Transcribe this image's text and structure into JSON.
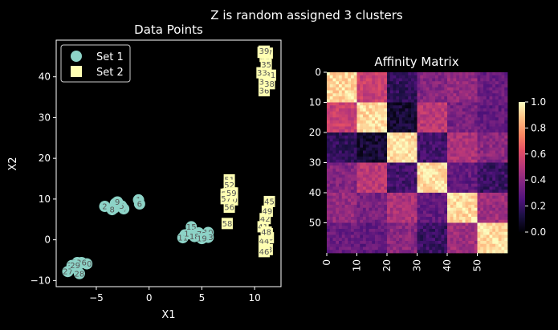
{
  "suptitle": "Z is random assigned 3 clusters",
  "colors": {
    "background": "#000000",
    "foreground": "#ffffff",
    "set1": "#8dd3c7",
    "set2": "#ffffb3",
    "label_text": "#555555"
  },
  "chart_data": [
    {
      "type": "scatter",
      "title": "Data Points",
      "xlabel": "X1",
      "ylabel": "X2",
      "xlim": [
        -8.8,
        12.5
      ],
      "ylim": [
        -11.5,
        49
      ],
      "xticks": [
        -5,
        0,
        5,
        10
      ],
      "yticks": [
        -10,
        0,
        10,
        20,
        30,
        40
      ],
      "xtick_labels": [
        "−5",
        "0",
        "5",
        "10"
      ],
      "ytick_labels": [
        "−10",
        "0",
        "10",
        "20",
        "30",
        "40"
      ],
      "legend_position": "top-left",
      "series": [
        {
          "name": "Set 1",
          "marker": "circle",
          "points": [
            {
              "label": "0",
              "x": 3.4,
              "y": 1.2
            },
            {
              "label": "1",
              "x": -1.0,
              "y": 9.8
            },
            {
              "label": "2",
              "x": -4.2,
              "y": 8.2
            },
            {
              "label": "3",
              "x": -3.3,
              "y": 7.8
            },
            {
              "label": "4",
              "x": -2.4,
              "y": 7.6
            },
            {
              "label": "5",
              "x": -2.6,
              "y": 8.3
            },
            {
              "label": "6",
              "x": -0.9,
              "y": 8.8
            },
            {
              "label": "7",
              "x": -3.2,
              "y": 8.9
            },
            {
              "label": "8",
              "x": -3.5,
              "y": 7.4
            },
            {
              "label": "9",
              "x": -3.0,
              "y": 9.3
            },
            {
              "label": "10",
              "x": 5.6,
              "y": 1.8
            },
            {
              "label": "11",
              "x": 3.2,
              "y": 0.5
            },
            {
              "label": "12",
              "x": 4.7,
              "y": 1.7
            },
            {
              "label": "13",
              "x": 5.6,
              "y": 0.6
            },
            {
              "label": "14",
              "x": 3.8,
              "y": 1.5
            },
            {
              "label": "15",
              "x": 4.0,
              "y": 3.2
            },
            {
              "label": "16",
              "x": 4.9,
              "y": 1.2
            },
            {
              "label": "17",
              "x": 4.5,
              "y": 1.4
            },
            {
              "label": "18",
              "x": 4.3,
              "y": 0.8
            },
            {
              "label": "19",
              "x": 5.0,
              "y": 0.3
            },
            {
              "label": "20",
              "x": -5.9,
              "y": -5.9
            },
            {
              "label": "21",
              "x": -7.3,
              "y": -6.3
            },
            {
              "label": "22",
              "x": -6.8,
              "y": -5.6
            },
            {
              "label": "23",
              "x": -6.6,
              "y": -5.9
            },
            {
              "label": "24",
              "x": -6.9,
              "y": -7.0
            },
            {
              "label": "25",
              "x": -7.2,
              "y": -6.9
            },
            {
              "label": "26",
              "x": -6.4,
              "y": -5.6
            },
            {
              "label": "27",
              "x": -7.7,
              "y": -7.8
            },
            {
              "label": "28",
              "x": -6.6,
              "y": -8.3
            },
            {
              "label": "29",
              "x": -7.0,
              "y": -6.3
            }
          ]
        },
        {
          "name": "Set 2",
          "marker": "square",
          "points": [
            {
              "label": "30",
              "x": 11.0,
              "y": 45.0
            },
            {
              "label": "31",
              "x": 11.5,
              "y": 40.4
            },
            {
              "label": "32",
              "x": 10.8,
              "y": 46.0
            },
            {
              "label": "33",
              "x": 10.7,
              "y": 41.0
            },
            {
              "label": "34",
              "x": 10.9,
              "y": 38.8
            },
            {
              "label": "35",
              "x": 11.1,
              "y": 43.0
            },
            {
              "label": "36",
              "x": 10.9,
              "y": 36.6
            },
            {
              "label": "37",
              "x": 11.2,
              "y": 45.8
            },
            {
              "label": "38",
              "x": 11.4,
              "y": 38.3
            },
            {
              "label": "39",
              "x": 10.9,
              "y": 46.3
            },
            {
              "label": "40",
              "x": 11.3,
              "y": 0.5
            },
            {
              "label": "41",
              "x": 10.8,
              "y": 3.2
            },
            {
              "label": "42",
              "x": 11.0,
              "y": 5.2
            },
            {
              "label": "43",
              "x": 11.2,
              "y": -2.4
            },
            {
              "label": "44",
              "x": 10.9,
              "y": -0.3
            },
            {
              "label": "45",
              "x": 11.4,
              "y": 9.4
            },
            {
              "label": "46",
              "x": 10.9,
              "y": -2.9
            },
            {
              "label": "47",
              "x": 11.2,
              "y": 1.5
            },
            {
              "label": "48",
              "x": 11.1,
              "y": 1.9
            },
            {
              "label": "49",
              "x": 11.2,
              "y": 7.0
            },
            {
              "label": "50",
              "x": 7.9,
              "y": 9.8
            },
            {
              "label": "51",
              "x": 7.6,
              "y": 14.7
            },
            {
              "label": "52",
              "x": 7.6,
              "y": 13.4
            },
            {
              "label": "53",
              "x": 7.5,
              "y": 11.3
            },
            {
              "label": "54",
              "x": 7.9,
              "y": 11.5
            },
            {
              "label": "55",
              "x": 7.3,
              "y": 11.2
            },
            {
              "label": "56",
              "x": 7.6,
              "y": 8.0
            },
            {
              "label": "57",
              "x": 7.3,
              "y": 10.1
            },
            {
              "label": "58",
              "x": 7.4,
              "y": 4.0
            },
            {
              "label": "59",
              "x": 7.8,
              "y": 11.5
            }
          ]
        }
      ]
    },
    {
      "type": "heatmap",
      "title": "Affinity Matrix",
      "rows": 60,
      "cols": 60,
      "xticks": [
        0,
        10,
        20,
        30,
        40,
        50
      ],
      "yticks": [
        0,
        10,
        20,
        30,
        40,
        50
      ],
      "colorbar_range": [
        0.0,
        1.0
      ],
      "colorbar_ticks": [
        0.0,
        0.2,
        0.4,
        0.6,
        0.8,
        1.0
      ],
      "colorbar_tick_labels": [
        "0.0",
        "0.2",
        "0.4",
        "0.6",
        "0.8",
        "1.0"
      ],
      "colormap": "magma",
      "block_size": 10,
      "block_affinity": [
        [
          0.92,
          0.55,
          0.18,
          0.38,
          0.42,
          0.32
        ],
        [
          0.55,
          0.92,
          0.1,
          0.52,
          0.35,
          0.3
        ],
        [
          0.18,
          0.1,
          0.93,
          0.22,
          0.48,
          0.4
        ],
        [
          0.38,
          0.52,
          0.22,
          0.93,
          0.3,
          0.2
        ],
        [
          0.42,
          0.35,
          0.48,
          0.3,
          0.92,
          0.45
        ],
        [
          0.32,
          0.3,
          0.4,
          0.2,
          0.45,
          0.93
        ]
      ]
    }
  ]
}
